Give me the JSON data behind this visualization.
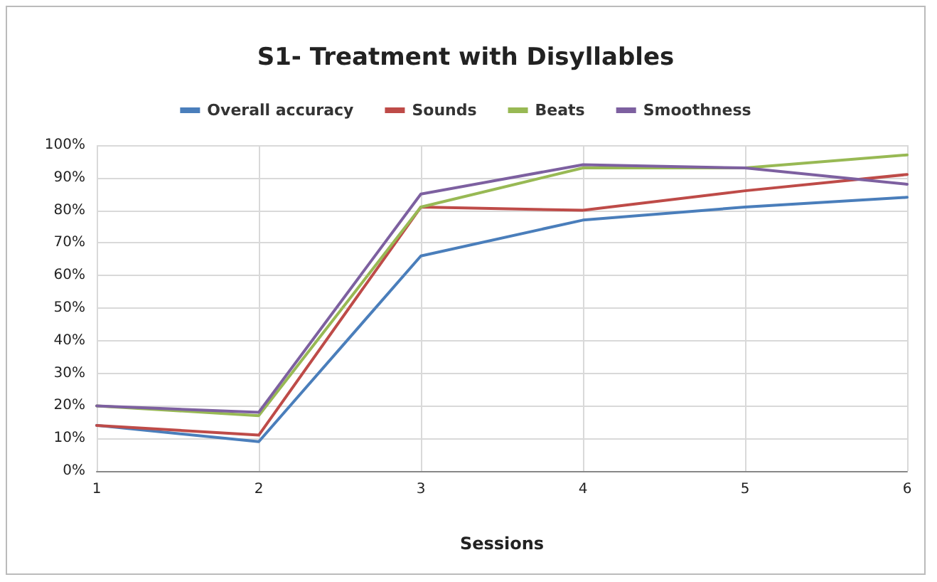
{
  "chart_data": {
    "type": "line",
    "title": "S1- Treatment with Disyllables",
    "xlabel": "Sessions",
    "x": [
      1,
      2,
      3,
      4,
      5,
      6
    ],
    "series": [
      {
        "name": "Overall accuracy",
        "color": "#4a7ebb",
        "values": [
          14,
          9,
          66,
          77,
          81,
          84
        ]
      },
      {
        "name": "Sounds",
        "color": "#be4b48",
        "values": [
          14,
          11,
          81,
          80,
          86,
          91
        ]
      },
      {
        "name": "Beats",
        "color": "#98b954",
        "values": [
          20,
          17,
          81,
          93,
          93,
          97
        ]
      },
      {
        "name": "Smoothness",
        "color": "#7d60a0",
        "values": [
          20,
          18,
          85,
          94,
          93,
          88
        ]
      }
    ],
    "xlim": [
      1,
      6
    ],
    "xticks": [
      1,
      2,
      3,
      4,
      5,
      6
    ],
    "ylim": [
      0,
      100
    ],
    "yticks": [
      {
        "value": 0,
        "label": "0%"
      },
      {
        "value": 10,
        "label": "10%"
      },
      {
        "value": 20,
        "label": "20%"
      },
      {
        "value": 30,
        "label": "30%"
      },
      {
        "value": 40,
        "label": "40%"
      },
      {
        "value": 50,
        "label": "50%"
      },
      {
        "value": 60,
        "label": "60%"
      },
      {
        "value": 70,
        "label": "70%"
      },
      {
        "value": 80,
        "label": "80%"
      },
      {
        "value": 90,
        "label": "90%"
      },
      {
        "value": 100,
        "label": "100%"
      }
    ],
    "grid": true,
    "legend": "top",
    "marker": "none",
    "line_style": "solid"
  }
}
